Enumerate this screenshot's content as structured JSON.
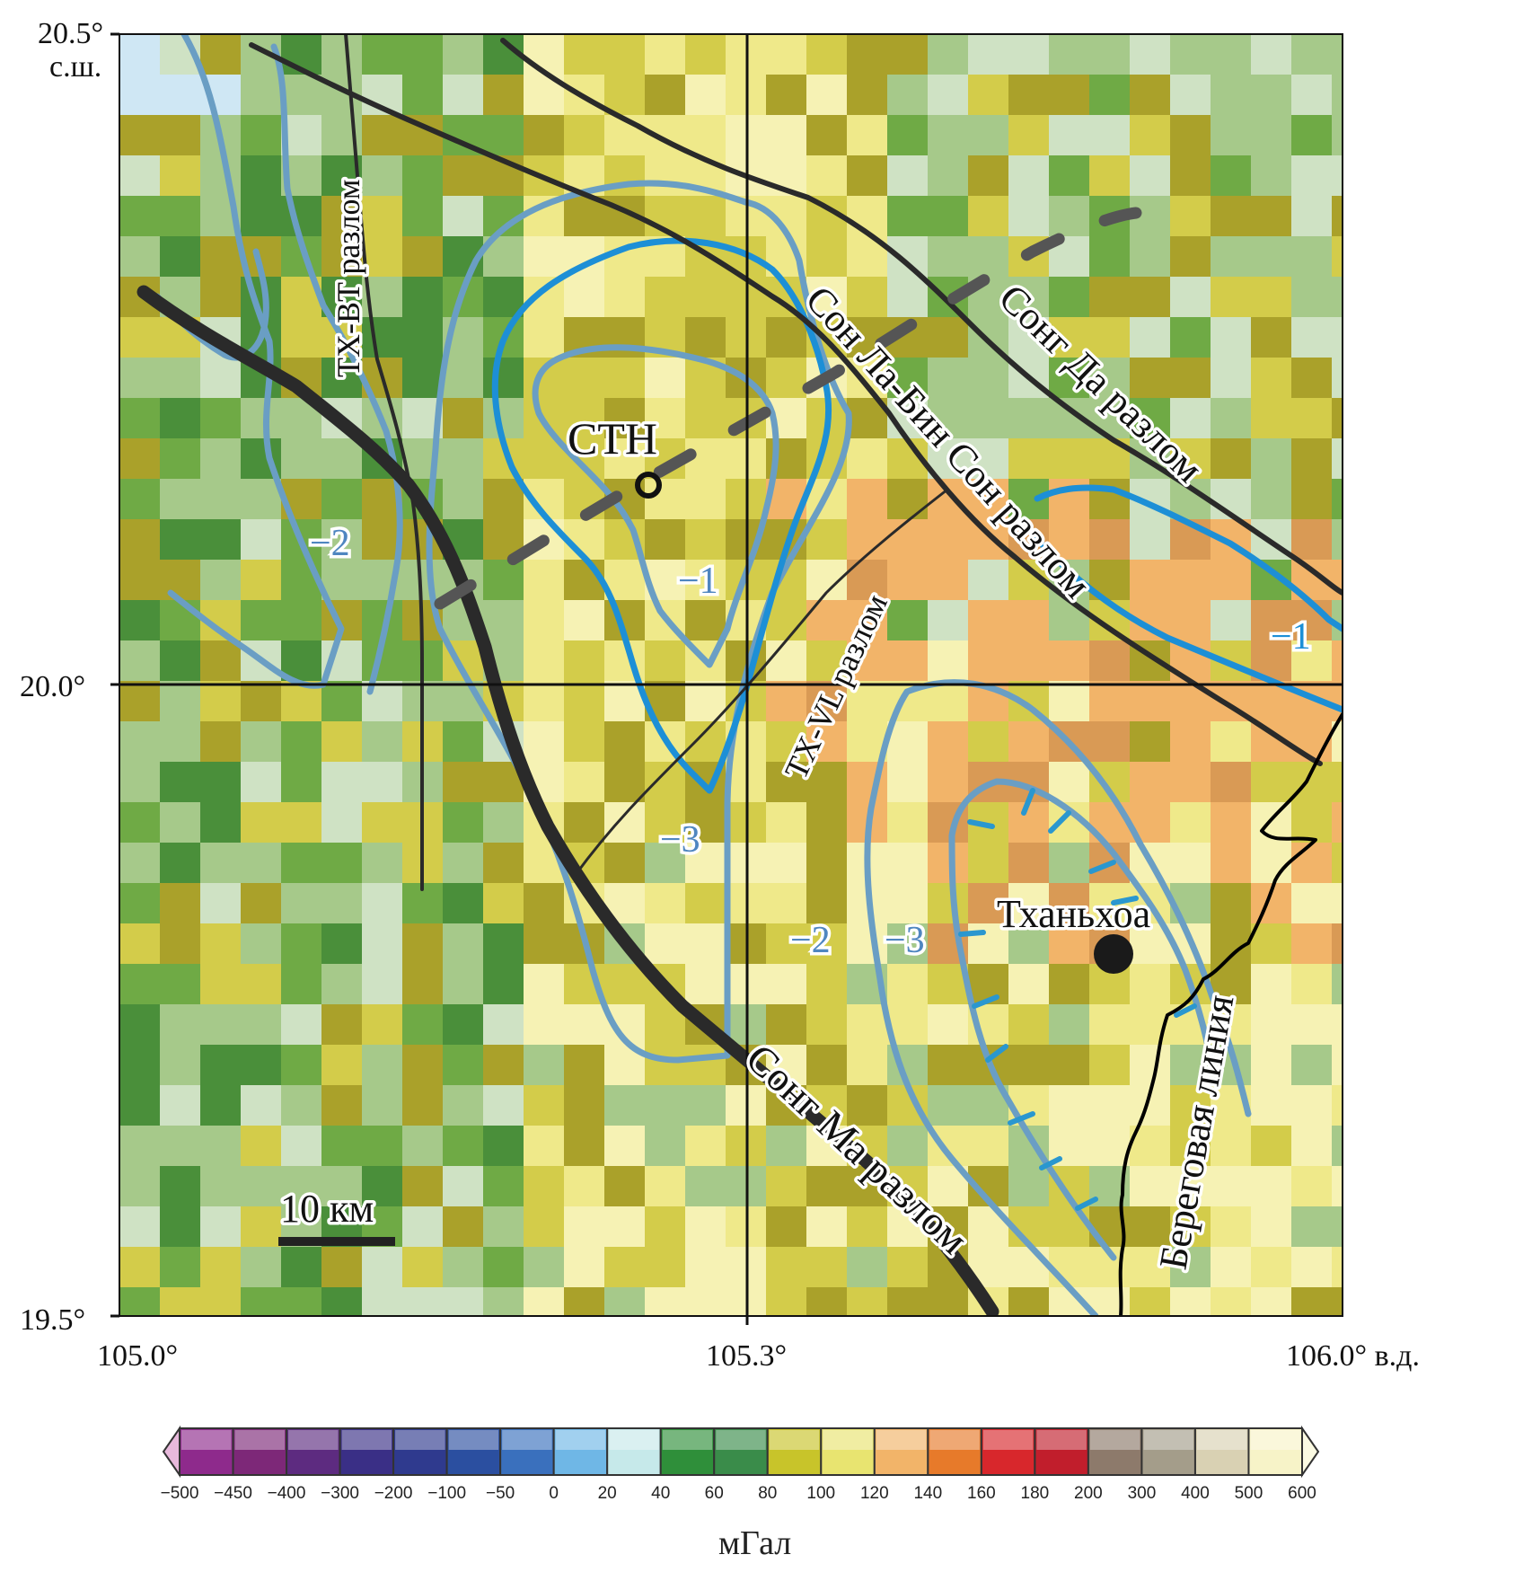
{
  "map": {
    "lat_top": "20.5°",
    "lat_top_unit": "с.ш.",
    "lat_mid": "20.0°",
    "lat_bottom": "19.5°",
    "lon_left": "105.0°",
    "lon_mid": "105.3°",
    "lon_right": "106.0° в.д."
  },
  "faults": {
    "tx_bt": "TX-BT разлом",
    "son_la": "Сон Ла-Бин Сон разлом",
    "song_da": "Сонг Да разлом",
    "tx_vl": "TX-VL разлом",
    "song_ma": "Сонг Ма разлом",
    "coastline": "Береговая линия"
  },
  "places": {
    "cth": "CTH",
    "thanh_hoa": "Тханьхоа"
  },
  "contours": {
    "c_minus2_left": "−2",
    "c_minus1_center": "−1",
    "c_minus1_right": "−1",
    "c_minus3_center": "−3",
    "c_minus2_bottom": "−2",
    "c_minus3_bottom": "−3"
  },
  "scale_bar": {
    "label": "10 км"
  },
  "colorbar": {
    "unit": "мГал",
    "ticks": [
      "−500",
      "−450",
      "−400",
      "−300",
      "−200",
      "−100",
      "−50",
      "0",
      "20",
      "40",
      "60",
      "80",
      "100",
      "120",
      "140",
      "160",
      "180",
      "200",
      "300",
      "400",
      "500",
      "600"
    ],
    "colors": [
      "#8e2a8c",
      "#7d2878",
      "#5d2b80",
      "#3a2f86",
      "#2f3a8e",
      "#2b4fa0",
      "#3a70bd",
      "#6fb7e6",
      "#c6e9ea",
      "#2f8f3a",
      "#3a8c4a",
      "#c8c42a",
      "#e8e470",
      "#f2b469",
      "#e77a2a",
      "#d8272c",
      "#c11e2c",
      "#8d7a6b",
      "#a49d8a",
      "#d9d1b3",
      "#f7f3c8"
    ],
    "palette": {
      "dark_green": "#4a8f3a",
      "green": "#6faa45",
      "light_green": "#a6c98a",
      "pale_green": "#cfe2c4",
      "olive": "#aaa12a",
      "dark_olive": "#8c8a2a",
      "yellow_olive": "#d3cc4a",
      "light_yellow": "#efe98a",
      "pale_yellow": "#f6f2b4",
      "orange": "#f2b469",
      "dark_orange": "#d99a55",
      "light_blue": "#cfe7f4"
    }
  }
}
